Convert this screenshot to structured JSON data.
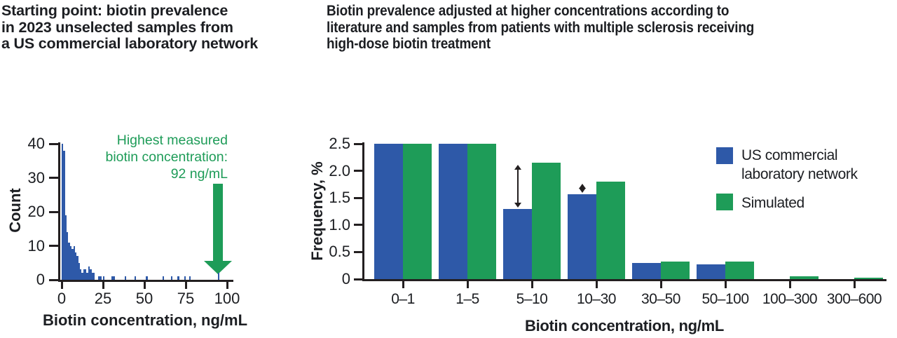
{
  "palette": {
    "blue": "#2e59a8",
    "green": "#1e9c58",
    "ink": "#1c1e22",
    "axis_black": "#231f20"
  },
  "left_panel": {
    "title_lines": [
      "Starting point: biotin prevalence",
      "in 2023 unselected samples from",
      "a US commercial laboratory network"
    ],
    "ylabel": "Count",
    "xlabel": "Biotin concentration, ng/mL",
    "annotation_lines": [
      "Highest measured",
      "biotin concentration:",
      "92 ng/mL"
    ]
  },
  "right_panel": {
    "title_lines": [
      "Biotin prevalence adjusted at higher concentrations according to",
      "literature and samples from patients with multiple sclerosis receiving",
      "high-dose biotin treatment"
    ],
    "ylabel": "Frequency, %",
    "xlabel": "Biotin concentration, ng/mL",
    "legend": [
      {
        "label_lines": [
          "US commercial",
          "laboratory network"
        ],
        "color": "#2e59a8"
      },
      {
        "label_lines": [
          "Simulated"
        ],
        "color": "#1e9c58"
      }
    ]
  },
  "chart_data": [
    {
      "type": "bar",
      "variant": "histogram",
      "title": "Starting point: biotin prevalence in 2023 unselected samples from a US commercial laboratory network",
      "xlabel": "Biotin concentration, ng/mL",
      "ylabel": "Count",
      "xlim": [
        0,
        100
      ],
      "ylim": [
        0,
        40
      ],
      "xticks": [
        0,
        25,
        50,
        75,
        100
      ],
      "yticks": [
        0,
        10,
        20,
        30,
        40
      ],
      "bar_color": "#2e59a8",
      "bars": [
        [
          0,
          40
        ],
        [
          1,
          38
        ],
        [
          2,
          19
        ],
        [
          3,
          14
        ],
        [
          4,
          11
        ],
        [
          5,
          10
        ],
        [
          6,
          9
        ],
        [
          7,
          10
        ],
        [
          8,
          8
        ],
        [
          9,
          7
        ],
        [
          10,
          5
        ],
        [
          11,
          3
        ],
        [
          12,
          2
        ],
        [
          13,
          3
        ],
        [
          14,
          3
        ],
        [
          15,
          2
        ],
        [
          16,
          4
        ],
        [
          17,
          3
        ],
        [
          18,
          2
        ],
        [
          19,
          2
        ],
        [
          22,
          1
        ],
        [
          23,
          1
        ],
        [
          25,
          1
        ],
        [
          30,
          1
        ],
        [
          31,
          1
        ],
        [
          38,
          1
        ],
        [
          44,
          1
        ],
        [
          51,
          1
        ],
        [
          61,
          1
        ],
        [
          66,
          1
        ],
        [
          70,
          1
        ],
        [
          74,
          1
        ],
        [
          77,
          1
        ],
        [
          94.5,
          2
        ]
      ],
      "annotation": {
        "text": "Highest measured biotin concentration: 92 ng/mL",
        "arrow_x": 94.5,
        "color": "#1e9c58"
      }
    },
    {
      "type": "bar",
      "variant": "grouped",
      "title": "Biotin prevalence adjusted at higher concentrations according to literature and samples from patients with multiple sclerosis receiving high-dose biotin treatment",
      "xlabel": "Biotin concentration, ng/mL",
      "ylabel": "Frequency, %",
      "ylim": [
        0,
        2.5
      ],
      "ytick_labels": [
        "0",
        "0.5",
        "1.0",
        "1.5",
        "2.0",
        "2.5"
      ],
      "categories": [
        "0–1",
        "1–5",
        "5–10",
        "10–30",
        "30–50",
        "50–100",
        "100–300",
        "300–600"
      ],
      "series": [
        {
          "name": "US commercial laboratory network",
          "color": "#2e59a8",
          "values": [
            2.5,
            2.5,
            1.3,
            1.57,
            0.3,
            0.27,
            0,
            0
          ]
        },
        {
          "name": "Simulated",
          "color": "#1e9c58",
          "values": [
            2.5,
            2.5,
            2.15,
            1.8,
            0.33,
            0.33,
            0.05,
            0.03
          ]
        }
      ],
      "difference_arrows": [
        {
          "category": "5–10",
          "between": [
            1.3,
            2.15
          ]
        },
        {
          "category": "10–30",
          "between": [
            1.57,
            1.8
          ]
        }
      ],
      "legend_position": "upper right",
      "grid": false
    }
  ]
}
